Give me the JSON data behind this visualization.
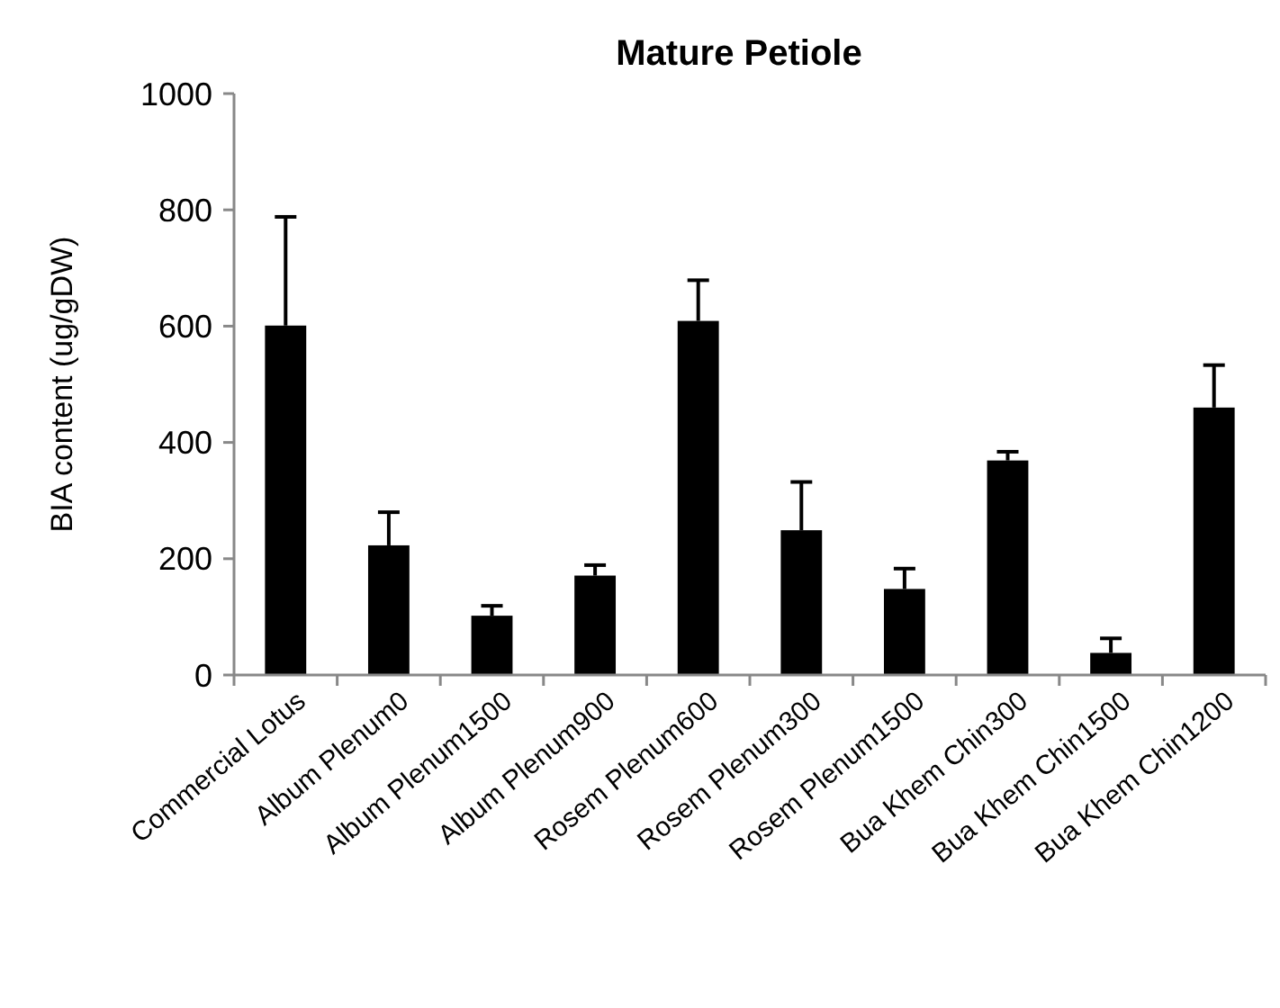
{
  "chart_data": {
    "type": "bar",
    "title": "Mature Petiole",
    "ylabel": "BIA content (ug/gDW)",
    "categories": [
      "Commercial Lotus",
      "Album Plenum0",
      "Album Plenum1500",
      "Album Plenum900",
      "Rosem Plenum600",
      "Rosem Plenum300",
      "Rosem Plenum1500",
      "Bua Khem Chin300",
      "Bua Khem Chin1500",
      "Bua Khem Chin1200"
    ],
    "values": [
      601,
      223,
      102,
      171,
      609,
      249,
      148,
      369,
      38,
      460
    ],
    "errors": [
      [
        601,
        788
      ],
      [
        223,
        280
      ],
      [
        102,
        119
      ],
      [
        171,
        189
      ],
      [
        609,
        679
      ],
      [
        249,
        332
      ],
      [
        148,
        183
      ],
      [
        369,
        384
      ],
      [
        38,
        63
      ],
      [
        460,
        533
      ]
    ],
    "color": "#000000",
    "ylim": [
      0,
      1000
    ],
    "yticks": [
      0,
      200,
      400,
      600,
      800,
      1000
    ],
    "grid": false
  }
}
